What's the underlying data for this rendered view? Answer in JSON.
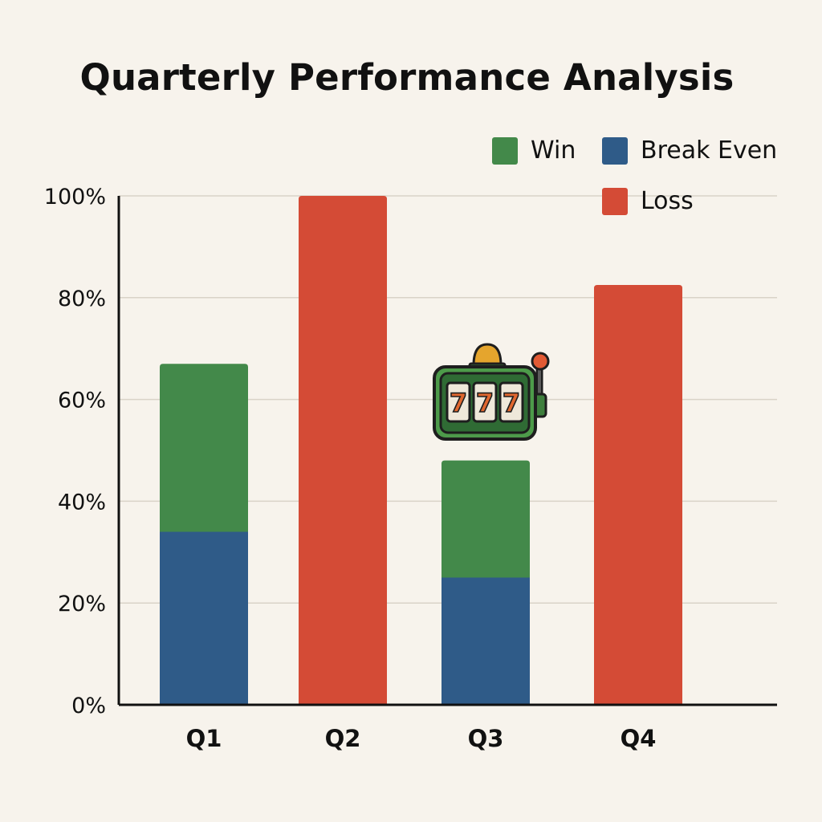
{
  "chart_data": {
    "type": "bar",
    "stacked": true,
    "title": "Quarterly Performance Analysis",
    "xlabel": "",
    "ylabel": "",
    "categories": [
      "Q1",
      "Q2",
      "Q3",
      "Q4"
    ],
    "series": [
      {
        "name": "Break Even",
        "color": "#2f5b88",
        "values": [
          34,
          0,
          25,
          0
        ]
      },
      {
        "name": "Win",
        "color": "#43894a",
        "values": [
          33,
          0,
          23,
          0
        ]
      },
      {
        "name": "Loss",
        "color": "#d44b36",
        "values": [
          0,
          100,
          0,
          82.5
        ]
      }
    ],
    "y_ticks": [
      "0%",
      "20%",
      "40%",
      "60%",
      "80%",
      "100%"
    ],
    "ylim": [
      0,
      100
    ],
    "grid": true,
    "legend_position": "top-right",
    "annotation_icon": "slot-machine-777-icon"
  },
  "legend": [
    {
      "label": "Win",
      "color": "#43894a"
    },
    {
      "label": "Break Even",
      "color": "#2f5b88"
    },
    {
      "label": "Loss",
      "color": "#d44b36"
    }
  ],
  "slot_machine": {
    "reel_1": "7",
    "reel_2": "7",
    "reel_3": "7"
  }
}
